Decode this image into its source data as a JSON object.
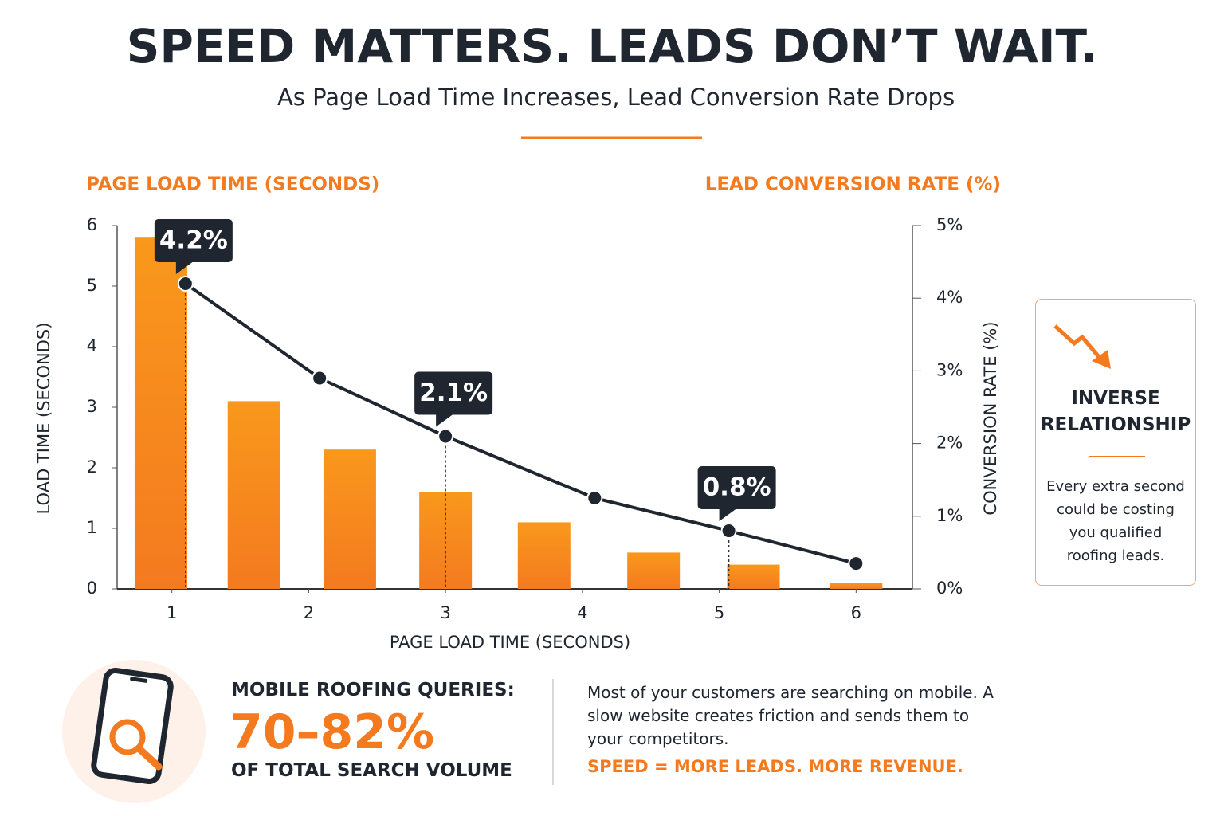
{
  "title": "SPEED MATTERS. LEADS DON’T WAIT.",
  "subtitle": "As Page Load Time Increases, Lead Conversion Rate Drops",
  "chart_data": {
    "type": "bar",
    "xlabel": "PAGE LOAD TIME (SECONDS)",
    "ylabel": "LOAD TIME (SECONDS)",
    "y2label": "CONVERSION RATE (%)",
    "xlim": [
      0.6,
      6.4
    ],
    "xticks": [
      1,
      2,
      3,
      4,
      5,
      6
    ],
    "ylim": [
      0,
      6
    ],
    "yticks": [
      0,
      1,
      2,
      3,
      4,
      5,
      6
    ],
    "y2lim": [
      0,
      5
    ],
    "y2ticks": [
      {
        "value": 0,
        "label": "0%"
      },
      {
        "value": 1,
        "label": "1%"
      },
      {
        "value": 2,
        "label": "2%"
      },
      {
        "value": 3,
        "label": "3%"
      },
      {
        "value": 4,
        "label": "4%"
      },
      {
        "value": 5,
        "label": "5%"
      }
    ],
    "series": [
      {
        "name": "PAGE LOAD TIME (SECONDS)",
        "type": "bar",
        "color": "#f7891f",
        "x": [
          0.92,
          1.6,
          2.3,
          3.0,
          3.72,
          4.52,
          5.25,
          6.0
        ],
        "values": [
          5.8,
          3.1,
          2.3,
          1.6,
          1.1,
          0.6,
          0.4,
          0.1
        ]
      },
      {
        "name": "LEAD CONVERSION RATE (%)",
        "type": "line",
        "axis": "y2",
        "color": "#1f2630",
        "x": [
          1.1,
          2.08,
          3.0,
          4.09,
          5.07,
          6.0
        ],
        "values": [
          4.2,
          2.9,
          2.1,
          1.25,
          0.8,
          0.35
        ],
        "value_labels": [
          "4.2%",
          null,
          "2.1%",
          null,
          "0.8%",
          null
        ]
      }
    ]
  },
  "sidebar": {
    "title": "INVERSE RELATIONSHIP",
    "text": "Every extra second could be costing you qualified roofing leads."
  },
  "footer": {
    "heading": "MOBILE ROOFING QUERIES:",
    "stat": "70–82%",
    "stat_note": "OF TOTAL SEARCH VOLUME",
    "text": "Most of your customers are searching on mobile. A slow website creates friction and sends them to your competitors.",
    "tagline": "SPEED = MORE LEADS. MORE REVENUE."
  }
}
